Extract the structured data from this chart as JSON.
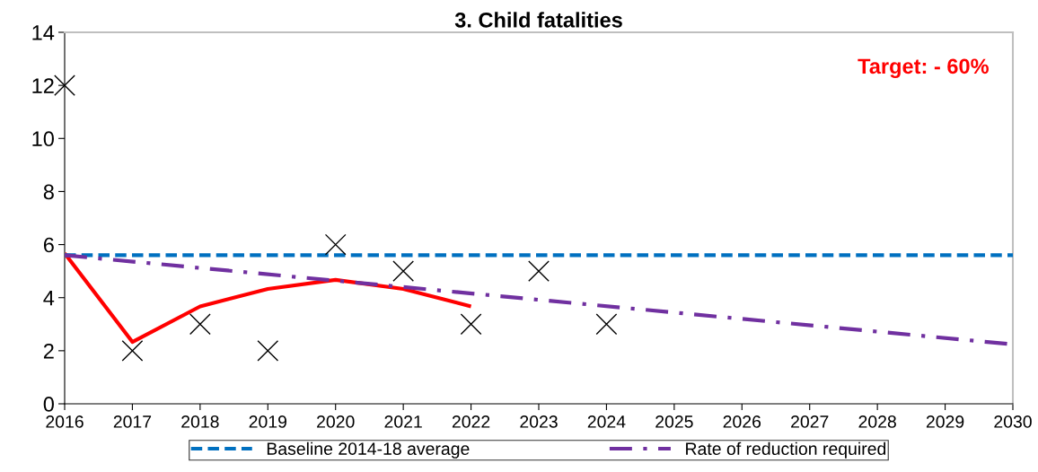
{
  "chart_data": {
    "type": "line",
    "title": "3. Child fatalities",
    "xlim": [
      2016,
      2030
    ],
    "xticks": [
      2016,
      2017,
      2018,
      2019,
      2020,
      2021,
      2022,
      2023,
      2024,
      2025,
      2026,
      2027,
      2028,
      2029,
      2030
    ],
    "ylim": [
      0,
      14
    ],
    "yticks": [
      0,
      2,
      4,
      6,
      8,
      10,
      12,
      14
    ],
    "grid": false,
    "legend": "bottom",
    "annotations": [
      "Target: - 60%"
    ],
    "series": [
      {
        "type": "scatter",
        "color": "#000000",
        "marker": "cross",
        "x": [
          2016,
          2017,
          2018,
          2019,
          2020,
          2021,
          2022,
          2023,
          2024
        ],
        "values": [
          12,
          2,
          3,
          2,
          6,
          5,
          3,
          5,
          3
        ]
      },
      {
        "color": "#ff0000",
        "marker": "none",
        "line_style": "solid",
        "x": [
          2016,
          2017,
          2018,
          2019,
          2020,
          2021,
          2022
        ],
        "values": [
          5.67,
          2.33,
          3.67,
          4.33,
          4.67,
          4.33,
          3.67
        ]
      },
      {
        "name": "Baseline 2014-18 average",
        "color": "#0070c0",
        "marker": "none",
        "line_style": "dashed",
        "x": [
          2016,
          2030
        ],
        "values": [
          5.6,
          5.6
        ]
      },
      {
        "name": "Rate of reduction required",
        "color": "#7030a0",
        "marker": "none",
        "line_style": "dashdot",
        "x": [
          2016,
          2030
        ],
        "values": [
          5.6,
          2.24
        ]
      }
    ]
  }
}
